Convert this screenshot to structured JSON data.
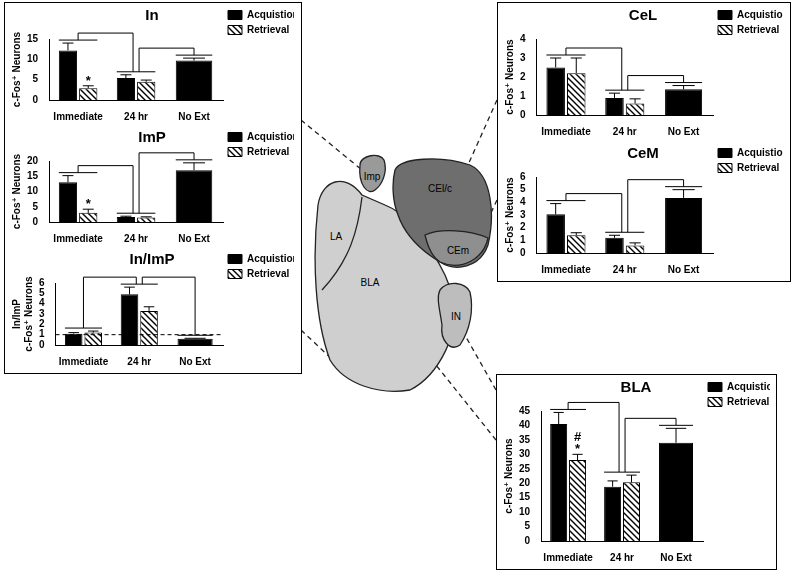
{
  "chart_data": [
    {
      "type": "bar",
      "title": "In",
      "ylabel": "c-Fos⁺ Neurons",
      "categories": [
        "Immediate",
        "24 hr",
        "No Ext"
      ],
      "series": [
        {
          "name": "Acquistion",
          "color": "#000000",
          "values": [
            12.2,
            5.4,
            9.7
          ],
          "errors": [
            1.8,
            0.8,
            0.6
          ]
        },
        {
          "name": "Retrieval",
          "color": "#000000",
          "values": [
            2.9,
            4.5,
            null
          ],
          "errors": [
            0.6,
            0.4,
            null
          ]
        }
      ],
      "ylim": [
        0,
        15
      ],
      "yticks": [
        0,
        5,
        10,
        15
      ],
      "grid": false,
      "legend": "right",
      "annotations": [
        {
          "category": "Immediate",
          "series": "Retrieval",
          "text": "*"
        }
      ]
    },
    {
      "type": "bar",
      "title": "ImP",
      "ylabel": "c-Fos⁺ Neurons",
      "categories": [
        "Immediate",
        "24 hr",
        "No Ext"
      ],
      "series": [
        {
          "name": "Acquistion",
          "color": "#000000",
          "values": [
            13.0,
            1.6,
            17.0
          ],
          "errors": [
            2.2,
            0.3,
            2.4
          ]
        },
        {
          "name": "Retrieval",
          "color": "#000000",
          "values": [
            3.0,
            1.5,
            null
          ],
          "errors": [
            1.2,
            0.2,
            null
          ]
        }
      ],
      "ylim": [
        0,
        20
      ],
      "yticks": [
        0,
        5,
        10,
        15,
        20
      ],
      "grid": false,
      "legend": "right",
      "annotations": [
        {
          "category": "Immediate",
          "series": "Retrieval",
          "text": "*"
        }
      ]
    },
    {
      "type": "bar",
      "title": "In/ImP",
      "ylabel": [
        "In/ImP",
        "c-Fos⁺ Neurons"
      ],
      "categories": [
        "Immediate",
        "24 hr",
        "No Ext"
      ],
      "series": [
        {
          "name": "Acquistion",
          "color": "#000000",
          "values": [
            1.1,
            4.9,
            0.6
          ],
          "errors": [
            0.1,
            0.7,
            0.05
          ]
        },
        {
          "name": "Retrieval",
          "color": "#000000",
          "values": [
            1.2,
            3.3,
            null
          ],
          "errors": [
            0.15,
            0.4,
            null
          ]
        }
      ],
      "ylim": [
        0,
        6
      ],
      "yticks": [
        0,
        1,
        2,
        3,
        4,
        5,
        6
      ],
      "grid": false,
      "legend": "right",
      "hline": 1
    },
    {
      "type": "bar",
      "title": "CeL",
      "ylabel": "c-Fos⁺ Neurons",
      "categories": [
        "Immediate",
        "24 hr",
        "No Ext"
      ],
      "series": [
        {
          "name": "Acquistion",
          "color": "#000000",
          "values": [
            2.5,
            0.9,
            1.35
          ],
          "errors": [
            0.5,
            0.25,
            0.2
          ]
        },
        {
          "name": "Retrieval",
          "color": "#000000",
          "values": [
            2.2,
            0.6,
            null
          ],
          "errors": [
            0.8,
            0.25,
            null
          ]
        }
      ],
      "ylim": [
        0,
        4
      ],
      "yticks": [
        0,
        1,
        2,
        3,
        4
      ],
      "grid": false,
      "legend": "right"
    },
    {
      "type": "bar",
      "title": "CeM",
      "ylabel": "c-Fos⁺ Neurons",
      "categories": [
        "Immediate",
        "24 hr",
        "No Ext"
      ],
      "series": [
        {
          "name": "Acquistion",
          "color": "#000000",
          "values": [
            3.05,
            1.2,
            4.35
          ],
          "errors": [
            0.85,
            0.2,
            0.65
          ]
        },
        {
          "name": "Retrieval",
          "color": "#000000",
          "values": [
            1.4,
            0.6,
            null
          ],
          "errors": [
            0.2,
            0.2,
            null
          ]
        }
      ],
      "ylim": [
        0,
        6
      ],
      "yticks": [
        0,
        1,
        2,
        3,
        4,
        5,
        6
      ],
      "grid": false,
      "legend": "right"
    },
    {
      "type": "bar",
      "title": "BLA",
      "ylabel": "c-Fos⁺ Neurons",
      "categories": [
        "Immediate",
        "24 hr",
        "No Ext"
      ],
      "series": [
        {
          "name": "Acquistion",
          "color": "#000000",
          "values": [
            40.5,
            18.8,
            34.0
          ],
          "errors": [
            4.0,
            2.0,
            5.0
          ]
        },
        {
          "name": "Retrieval",
          "color": "#000000",
          "values": [
            28.0,
            20.3,
            null
          ],
          "errors": [
            2.0,
            2.5,
            null
          ]
        }
      ],
      "ylim": [
        0,
        45
      ],
      "yticks": [
        0,
        5,
        10,
        15,
        20,
        25,
        30,
        35,
        40,
        45
      ],
      "grid": false,
      "legend": "right",
      "annotations": [
        {
          "category": "Immediate",
          "series": "Retrieval",
          "text": "*"
        },
        {
          "category": "Immediate",
          "series": "Retrieval",
          "text": "#"
        }
      ]
    }
  ],
  "diagram": {
    "regions": [
      "LA",
      "BLA",
      "Imp",
      "CEl/c",
      "CEm",
      "IN"
    ]
  }
}
